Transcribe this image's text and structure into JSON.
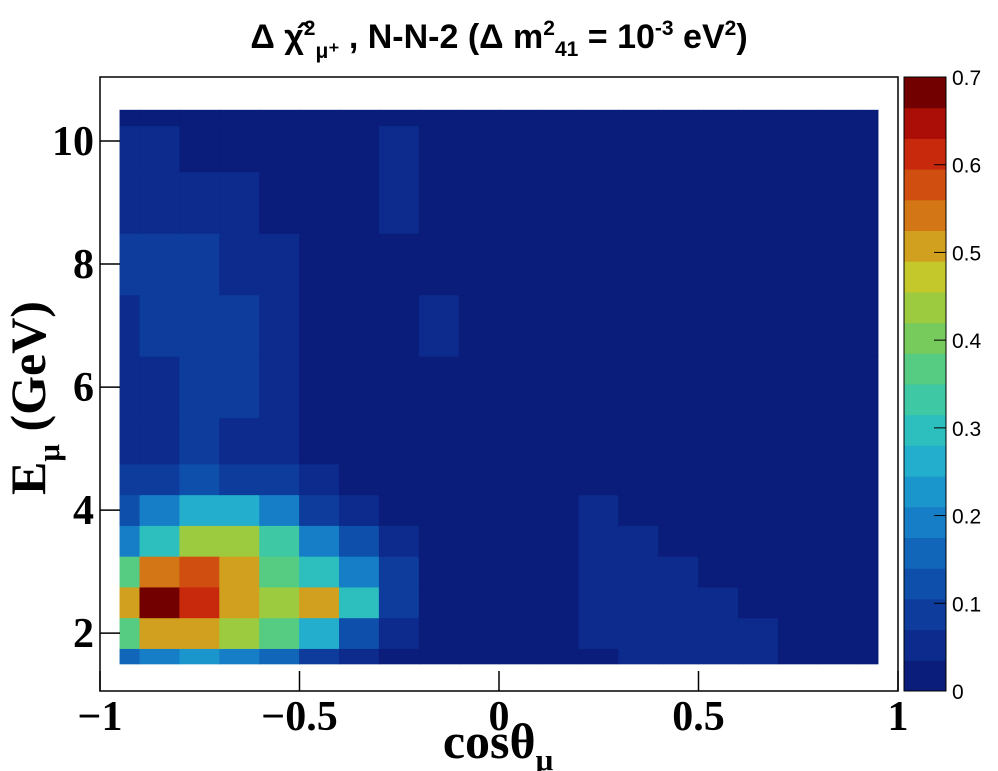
{
  "chart_data": {
    "type": "contour",
    "title": [
      "Δ  ",
      "χ̂",
      "2",
      "μ⁺",
      " , N-N-2 (Δ m",
      "2",
      "41",
      " = 10",
      "-3",
      " eV",
      "2",
      ")"
    ],
    "x_label": [
      "cosθ",
      "μ"
    ],
    "y_label": [
      "E",
      "μ",
      " (GeV)"
    ],
    "xlim": [
      -1,
      1
    ],
    "xticks": [
      {
        "value": -1,
        "label": "−1"
      },
      {
        "value": -0.5,
        "label": "−0.5"
      },
      0,
      0.5,
      1
    ],
    "ylim": [
      1.06,
      11.04
    ],
    "yticks": [
      2,
      4,
      6,
      8,
      10
    ],
    "zlim": [
      0,
      0.7
    ],
    "zticks": [
      0,
      0.1,
      0.2,
      0.3,
      0.4,
      0.5,
      0.6,
      0.7
    ],
    "palette": [
      "#0b1d7a",
      "#0c2b8c",
      "#0d3c9c",
      "#0f4fac",
      "#1266ba",
      "#167ec6",
      "#1a96cc",
      "#22aecc",
      "#2cbfbe",
      "#3ec8a4",
      "#56cb82",
      "#76cb5c",
      "#9ccb40",
      "#c4c82a",
      "#d0a01e",
      "#d27616",
      "#cf4e10",
      "#c8280c",
      "#aa0e06",
      "#720000"
    ],
    "x": [
      -0.95,
      -0.85,
      -0.75,
      -0.65,
      -0.55,
      -0.45,
      -0.35,
      -0.25,
      -0.15,
      -0.05,
      0.05,
      0.15,
      0.25,
      0.35,
      0.45,
      0.55,
      0.65,
      0.75,
      0.85,
      0.95
    ],
    "y": [
      1.5,
      2,
      2.5,
      3,
      3.5,
      4,
      4.5,
      5,
      6,
      7,
      8,
      9,
      10,
      10.5
    ],
    "z": [
      [
        0.15,
        0.2,
        0.22,
        0.2,
        0.15,
        0.1,
        0.05,
        0.03,
        0.02,
        0.02,
        0.02,
        0.02,
        0.03,
        0.04,
        0.04,
        0.04,
        0.04,
        0.02,
        0.02,
        0.02
      ],
      [
        0.35,
        0.5,
        0.5,
        0.42,
        0.35,
        0.25,
        0.12,
        0.05,
        0.02,
        0.02,
        0.02,
        0.03,
        0.04,
        0.05,
        0.05,
        0.05,
        0.04,
        0.02,
        0.02,
        0.02
      ],
      [
        0.5,
        0.7,
        0.62,
        0.5,
        0.45,
        0.52,
        0.3,
        0.1,
        0.03,
        0.02,
        0.02,
        0.03,
        0.05,
        0.05,
        0.05,
        0.04,
        0.03,
        0.02,
        0.02,
        0.02
      ],
      [
        0.35,
        0.55,
        0.58,
        0.5,
        0.38,
        0.3,
        0.2,
        0.08,
        0.03,
        0.02,
        0.02,
        0.03,
        0.05,
        0.05,
        0.04,
        0.03,
        0.02,
        0.02,
        0.02,
        0.02
      ],
      [
        0.2,
        0.3,
        0.42,
        0.42,
        0.32,
        0.2,
        0.12,
        0.05,
        0.02,
        0.02,
        0.02,
        0.03,
        0.05,
        0.04,
        0.03,
        0.02,
        0.02,
        0.02,
        0.02,
        0.02
      ],
      [
        0.12,
        0.18,
        0.25,
        0.25,
        0.18,
        0.1,
        0.06,
        0.03,
        0.02,
        0.02,
        0.02,
        0.02,
        0.04,
        0.03,
        0.02,
        0.02,
        0.02,
        0.02,
        0.02,
        0.02
      ],
      [
        0.08,
        0.1,
        0.12,
        0.1,
        0.08,
        0.05,
        0.03,
        0.02,
        0.02,
        0.02,
        0.02,
        0.02,
        0.02,
        0.02,
        0.02,
        0.02,
        0.02,
        0.02,
        0.02,
        0.02
      ],
      [
        0.06,
        0.06,
        0.07,
        0.06,
        0.05,
        0.03,
        0.02,
        0.02,
        0.02,
        0.02,
        0.02,
        0.02,
        0.02,
        0.02,
        0.02,
        0.02,
        0.02,
        0.02,
        0.02,
        0.02
      ],
      [
        0.05,
        0.06,
        0.07,
        0.07,
        0.05,
        0.03,
        0.02,
        0.02,
        0.02,
        0.02,
        0.02,
        0.02,
        0.02,
        0.02,
        0.02,
        0.02,
        0.02,
        0.02,
        0.02,
        0.02
      ],
      [
        0.06,
        0.07,
        0.08,
        0.07,
        0.05,
        0.03,
        0.02,
        0.02,
        0.04,
        0.02,
        0.02,
        0.02,
        0.02,
        0.02,
        0.02,
        0.02,
        0.02,
        0.02,
        0.02,
        0.02
      ],
      [
        0.07,
        0.1,
        0.08,
        0.06,
        0.04,
        0.02,
        0.02,
        0.02,
        0.02,
        0.02,
        0.02,
        0.02,
        0.02,
        0.02,
        0.02,
        0.02,
        0.02,
        0.02,
        0.02,
        0.02
      ],
      [
        0.06,
        0.06,
        0.05,
        0.04,
        0.03,
        0.02,
        0.02,
        0.04,
        0.02,
        0.02,
        0.02,
        0.02,
        0.02,
        0.02,
        0.02,
        0.02,
        0.02,
        0.02,
        0.02,
        0.02
      ],
      [
        0.05,
        0.04,
        0.03,
        0.02,
        0.02,
        0.02,
        0.02,
        0.04,
        0.02,
        0.02,
        0.02,
        0.02,
        0.02,
        0.02,
        0.02,
        0.02,
        0.02,
        0.02,
        0.02,
        0.02
      ],
      [
        0.03,
        0.02,
        0.02,
        0.02,
        0.02,
        0.02,
        0.02,
        0.02,
        0.02,
        0.02,
        0.02,
        0.02,
        0.02,
        0.02,
        0.02,
        0.02,
        0.02,
        0.02,
        0.02,
        0.02
      ]
    ]
  }
}
